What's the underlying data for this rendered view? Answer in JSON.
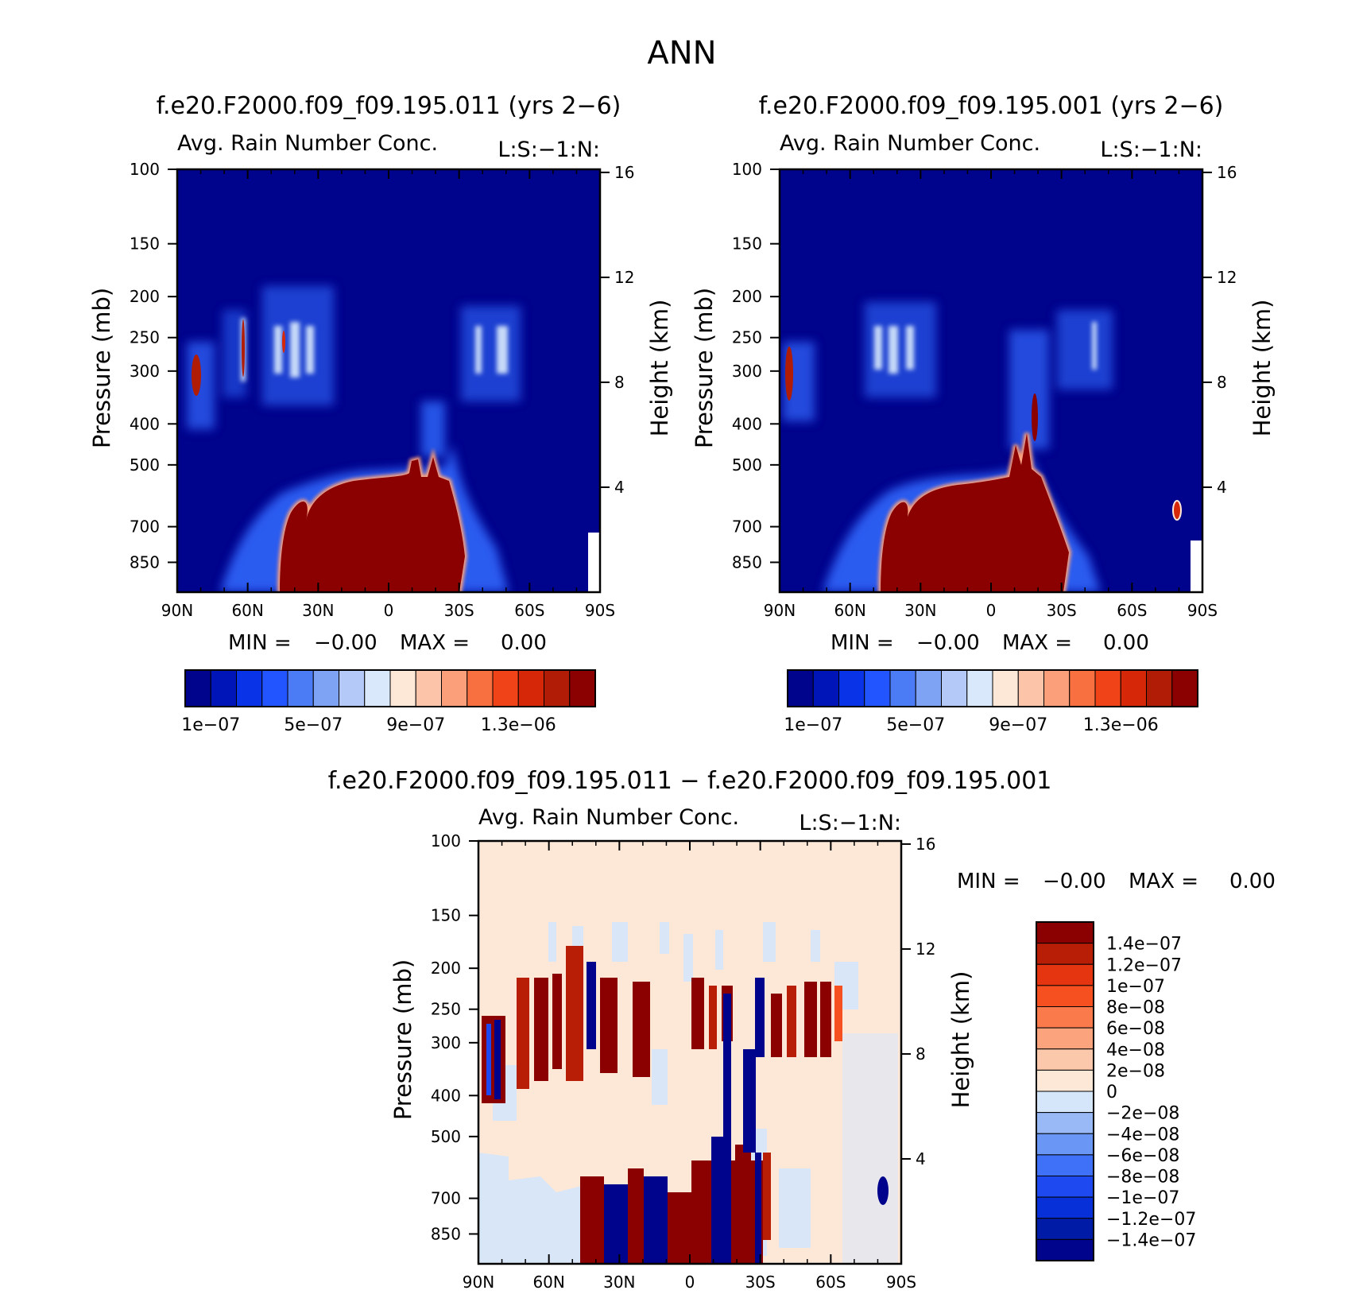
{
  "figure_title": "ANN",
  "colors": {
    "background": "#ffffff",
    "field_bg_abs": "#00038c",
    "field_bg_diff": "#fde8d8",
    "abs_palette": [
      "#00038c",
      "#0015b8",
      "#0833e6",
      "#2255ff",
      "#4b7cf6",
      "#7ea2f4",
      "#b5c9f8",
      "#d9e8fb",
      "#fde8d8",
      "#fcc4a8",
      "#fb9f7a",
      "#f87040",
      "#f04418",
      "#d62708",
      "#b01c06",
      "#8b0000"
    ],
    "diff_palette": [
      "#00038c",
      "#001ba6",
      "#0830d8",
      "#1e48f0",
      "#3f70f8",
      "#6a96f6",
      "#98b8f6",
      "#d5e6fb",
      "#fde8d8",
      "#fcc8ab",
      "#fba37d",
      "#fa7a4c",
      "#f75020",
      "#e43410",
      "#b81e06",
      "#8b0000"
    ]
  },
  "chart_data": [
    {
      "type": "contour",
      "title": "f.e20.F2000.f09_f09.195.011 (yrs 2−6)",
      "subtitle": "Avg. Rain Number Conc.",
      "corner_label": "L:S:−1:N:",
      "xlabel": "",
      "ylabel": "Pressure (mb)",
      "y2label": "Height (km)",
      "x_ticks": [
        "90N",
        "60N",
        "30N",
        "0",
        "30S",
        "60S",
        "90S"
      ],
      "x_range": [
        90,
        -90
      ],
      "y_ticks": [
        100,
        150,
        200,
        250,
        300,
        400,
        500,
        700,
        850
      ],
      "y_range": [
        100,
        1000
      ],
      "y2_ticks": [
        16,
        12,
        8,
        4
      ],
      "min_label": "MIN =",
      "min_value": "−0.00",
      "max_label": "MAX =",
      "max_value": "0.00",
      "colorbar_labels": [
        "1e−07",
        "5e−07",
        "9e−07",
        "1.3e−06"
      ],
      "features": [
        {
          "lat": 10,
          "p": 700,
          "value": 1.5e-06
        },
        {
          "lat": -30,
          "p": 320,
          "value": 1e-06
        },
        {
          "lat": 50,
          "p": 260,
          "value": 9e-07
        },
        {
          "lat": 83,
          "p": 320,
          "value": 1.4e-06
        }
      ]
    },
    {
      "type": "contour",
      "title": "f.e20.F2000.f09_f09.195.001 (yrs 2−6)",
      "subtitle": "Avg. Rain Number Conc.",
      "corner_label": "L:S:−1:N:",
      "xlabel": "",
      "ylabel": "Pressure (mb)",
      "y2label": "Height (km)",
      "x_ticks": [
        "90N",
        "60N",
        "30N",
        "0",
        "30S",
        "60S",
        "90S"
      ],
      "x_range": [
        90,
        -90
      ],
      "y_ticks": [
        100,
        150,
        200,
        250,
        300,
        400,
        500,
        700,
        850
      ],
      "y_range": [
        100,
        1000
      ],
      "y2_ticks": [
        16,
        12,
        8,
        4
      ],
      "min_label": "MIN =",
      "min_value": "−0.00",
      "max_label": "MAX =",
      "max_value": "0.00",
      "colorbar_labels": [
        "1e−07",
        "5e−07",
        "9e−07",
        "1.3e−06"
      ],
      "features": [
        {
          "lat": 10,
          "p": 700,
          "value": 1.5e-06
        },
        {
          "lat": 50,
          "p": 260,
          "value": 9e-07
        },
        {
          "lat": -80,
          "p": 640,
          "value": 1.5e-06
        }
      ]
    },
    {
      "type": "contour",
      "title": "f.e20.F2000.f09_f09.195.011 − f.e20.F2000.f09_f09.195.001",
      "subtitle": "Avg. Rain Number Conc.",
      "corner_label": "L:S:−1:N:",
      "xlabel": "",
      "ylabel": "Pressure (mb)",
      "y2label": "Height (km)",
      "x_ticks": [
        "90N",
        "60N",
        "30N",
        "0",
        "30S",
        "60S",
        "90S"
      ],
      "x_range": [
        90,
        -90
      ],
      "y_ticks": [
        100,
        150,
        200,
        250,
        300,
        400,
        500,
        700,
        850
      ],
      "y_range": [
        100,
        1000
      ],
      "y2_ticks": [
        16,
        12,
        8,
        4
      ],
      "min_label": "MIN =",
      "min_value": "−0.00",
      "max_label": "MAX =",
      "max_value": "0.00",
      "colorbar_labels": [
        "1.4e−07",
        "1.2e−07",
        "1e−07",
        "8e−08",
        "6e−08",
        "4e−08",
        "2e−08",
        "0",
        "−2e−08",
        "−4e−08",
        "−6e−08",
        "−8e−08",
        "−1e−07",
        "−1.2e−07",
        "−1.4e−07"
      ]
    }
  ]
}
